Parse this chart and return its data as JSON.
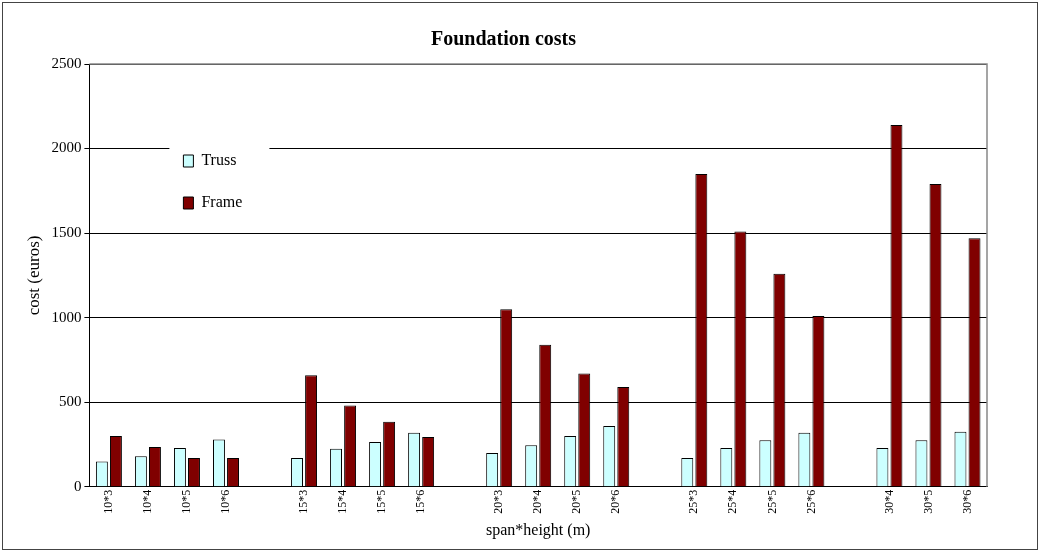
{
  "chart_data": {
    "type": "bar",
    "title": "Foundation costs",
    "xlabel": "span*height (m)",
    "ylabel": "cost (euros)",
    "categories": [
      "10*3",
      "10*4",
      "10*5",
      "10*6",
      null,
      "15*3",
      "15*4",
      "15*5",
      "15*6",
      null,
      "20*3",
      "20*4",
      "20*5",
      "20*6",
      null,
      "25*3",
      "25*4",
      "25*5",
      "25*6",
      null,
      "30*4",
      "30*5",
      "30*6"
    ],
    "series": [
      {
        "name": "Truss",
        "color": "#ccffff",
        "values": [
          150,
          180,
          230,
          280,
          null,
          170,
          225,
          265,
          320,
          null,
          200,
          245,
          300,
          360,
          null,
          170,
          230,
          275,
          320,
          null,
          230,
          275,
          325
        ]
      },
      {
        "name": "Frame",
        "color": "#800000",
        "values": [
          300,
          235,
          170,
          170,
          null,
          660,
          480,
          385,
          295,
          null,
          1050,
          840,
          670,
          590,
          null,
          1850,
          1510,
          1260,
          1010,
          null,
          2140,
          1790,
          1470
        ]
      }
    ],
    "ylim": [
      0,
      2500
    ],
    "yticks": [
      0,
      500,
      1000,
      1500,
      2000,
      2500
    ],
    "grid": "y",
    "legend": "top left"
  }
}
